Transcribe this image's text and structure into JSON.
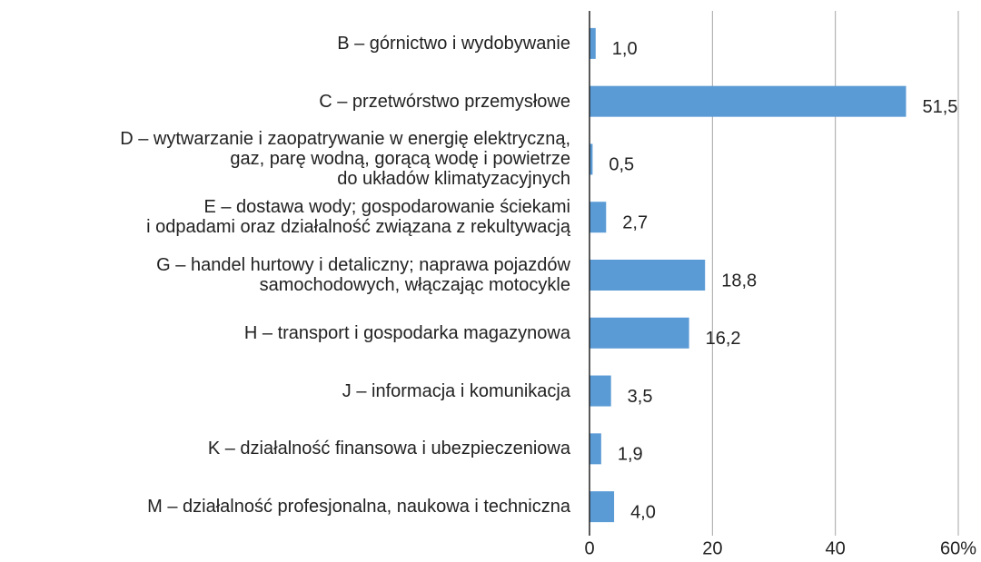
{
  "chart_data": {
    "type": "bar",
    "orientation": "horizontal",
    "categories": [
      "B – górnictwo i wydobywanie",
      "C – przetwórstwo przemysłowe",
      "D – wytwarzanie i zaopatrywanie w energię elektryczną,\ngaz, parę wodną, gorącą wodę i powietrze\ndo układów klimatyzacyjnych",
      "E – dostawa wody; gospodarowanie ściekami\ni odpadami oraz działalność związana z rekultywacją",
      "G – handel hurtowy i detaliczny; naprawa pojazdów\nsamochodowych, włączając motocykle",
      "H – transport i gospodarka magazynowa",
      "J – informacja i komunikacja",
      "K – działalność finansowa i ubezpieczeniowa",
      "M – działalność profesjonalna, naukowa i techniczna"
    ],
    "values": [
      1.0,
      51.5,
      0.5,
      2.7,
      18.8,
      16.2,
      3.5,
      1.9,
      4.0
    ],
    "value_labels": [
      "1,0",
      "51,5",
      "0,5",
      "2,7",
      "18,8",
      "16,2",
      "3,5",
      "1,9",
      "4,0"
    ],
    "color": "#5b9bd5",
    "xlim": [
      0,
      60
    ],
    "xticks": [
      0,
      20,
      40,
      {
        "value": 60,
        "label": "60%"
      }
    ],
    "grid": true
  }
}
